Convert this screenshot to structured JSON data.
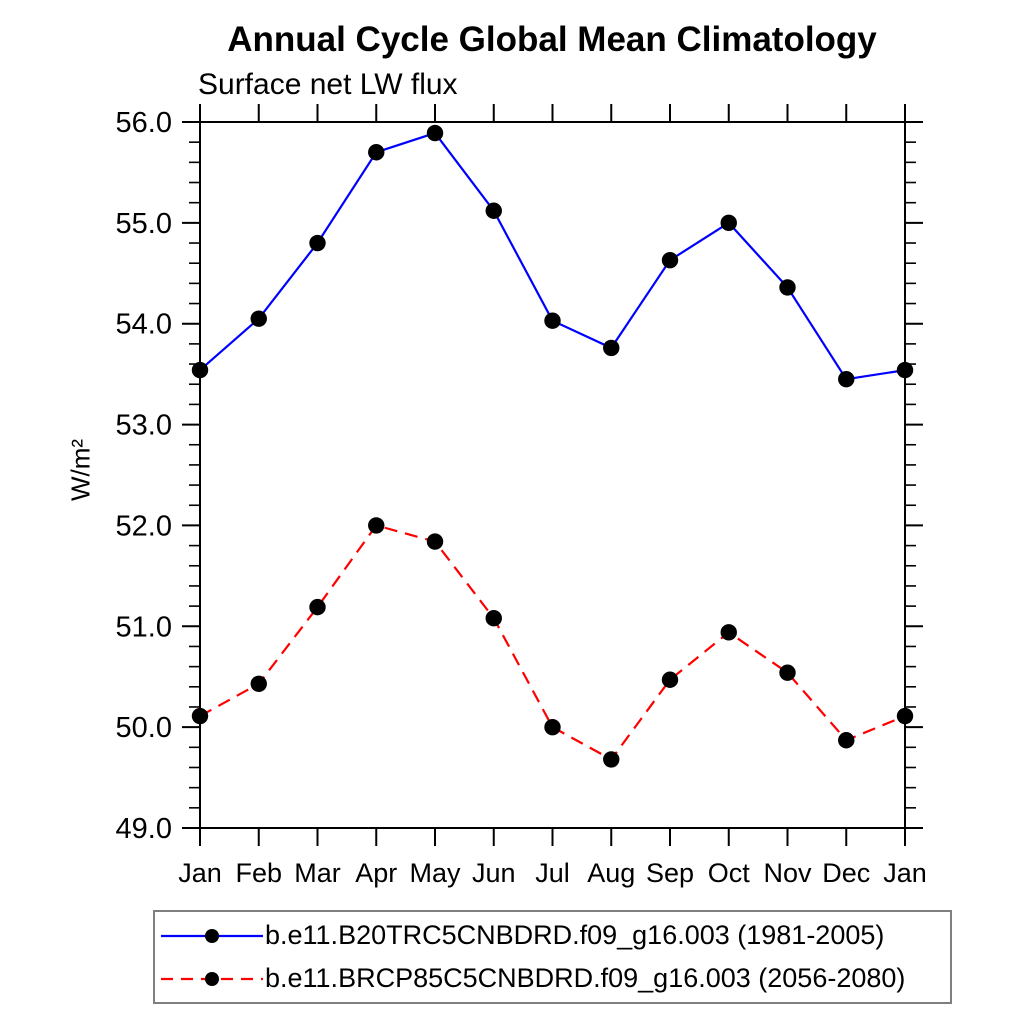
{
  "chart_data": {
    "type": "line",
    "title": "Annual Cycle Global Mean Climatology",
    "subtitle": "Surface net LW flux",
    "ylabel": "W/m²",
    "xlabel": "",
    "categories": [
      "Jan",
      "Feb",
      "Mar",
      "Apr",
      "May",
      "Jun",
      "Jul",
      "Aug",
      "Sep",
      "Oct",
      "Nov",
      "Dec",
      "Jan"
    ],
    "ylim": [
      49.0,
      56.0
    ],
    "ytick_interval": 1.0,
    "yminor_interval": 0.2,
    "ytick_decimals": 1,
    "grid": false,
    "legend_position": "bottom",
    "frame_color": "#000000",
    "series": [
      {
        "name": "b.e11.B20TRC5CNBDRD.f09_g16.003 (1981-2005)",
        "color": "#0000ff",
        "line_style": "solid",
        "marker": "filled-circle",
        "marker_color": "#000000",
        "values": [
          53.54,
          54.05,
          54.8,
          55.7,
          55.89,
          55.12,
          54.03,
          53.76,
          54.63,
          55.0,
          54.36,
          53.45,
          53.54
        ]
      },
      {
        "name": "b.e11.BRCP85C5CNBDRD.f09_g16.003 (2056-2080)",
        "color": "#ff0000",
        "line_style": "dashed",
        "marker": "filled-circle",
        "marker_color": "#000000",
        "values": [
          50.11,
          50.43,
          51.19,
          52.0,
          51.84,
          51.08,
          50.0,
          49.68,
          50.47,
          50.94,
          50.54,
          49.87,
          50.11
        ]
      }
    ]
  }
}
